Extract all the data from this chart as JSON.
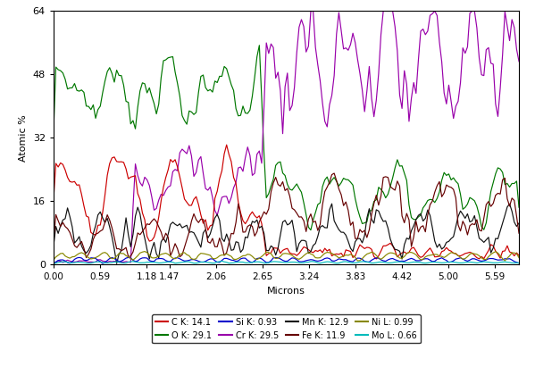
{
  "xlabel": "Microns",
  "ylabel": "Atomic %",
  "xlim": [
    0.0,
    5.9
  ],
  "ylim": [
    0,
    64
  ],
  "yticks": [
    0,
    16,
    32,
    48,
    64
  ],
  "xtick_labels": [
    "0.00",
    "0.59",
    "1.18",
    "1.47",
    "2.06",
    "2.65",
    "3.24",
    "3.83",
    "4.42",
    "5.00",
    "5.59"
  ],
  "xtick_positions": [
    0.0,
    0.59,
    1.18,
    1.47,
    2.06,
    2.65,
    3.24,
    3.83,
    4.42,
    5.0,
    5.59
  ],
  "legend_row1": [
    {
      "label": "C K: 14.1",
      "color": "#cc0000"
    },
    {
      "label": "O K: 29.1",
      "color": "#007700"
    },
    {
      "label": "Si K: 0.93",
      "color": "#0000cc"
    },
    {
      "label": "Cr K: 29.5",
      "color": "#9900aa"
    }
  ],
  "legend_row2": [
    {
      "label": "Mn K: 12.9",
      "color": "#111111"
    },
    {
      "label": "Fe K: 11.9",
      "color": "#660000"
    },
    {
      "label": "Ni L: 0.99",
      "color": "#888800"
    },
    {
      "label": "Mo L: 0.66",
      "color": "#00bbbb"
    }
  ],
  "n_points": 200,
  "seed": 7
}
